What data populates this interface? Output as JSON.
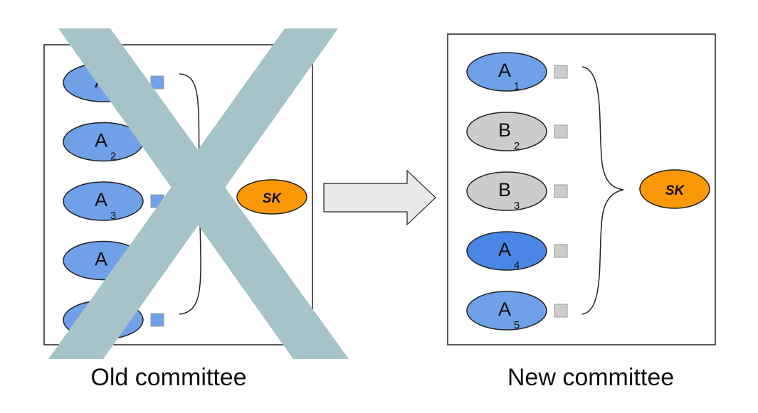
{
  "old_committee": {
    "caption": "Old committee",
    "members": [
      {
        "letter": "A",
        "index": "1",
        "fill": "#6fa0e8"
      },
      {
        "letter": "A",
        "index": "2",
        "fill": "#6fa0e8"
      },
      {
        "letter": "A",
        "index": "3",
        "fill": "#6fa0e8"
      },
      {
        "letter": "A",
        "index": "4",
        "fill": "#6fa0e8"
      },
      {
        "letter": "A",
        "index": "5",
        "fill": "#6fa0e8"
      }
    ],
    "share_color": "#6fa0e8",
    "secret_key_label": "SK",
    "crossed_out": true,
    "cross_color": "#a5c3c9"
  },
  "new_committee": {
    "caption": "New committee",
    "members": [
      {
        "letter": "A",
        "index": "1",
        "fill": "#6fa0e8"
      },
      {
        "letter": "B",
        "index": "2",
        "fill": "#cccccc"
      },
      {
        "letter": "B",
        "index": "3",
        "fill": "#cccccc"
      },
      {
        "letter": "A",
        "index": "4",
        "fill": "#4a86e3"
      },
      {
        "letter": "A",
        "index": "5",
        "fill": "#6fa0e8"
      }
    ],
    "share_color": "#cccccc",
    "secret_key_label": "SK"
  },
  "colors": {
    "secret_key": "#fb9807",
    "arrow_fill": "#e8eaea",
    "box_border": "#222222"
  }
}
